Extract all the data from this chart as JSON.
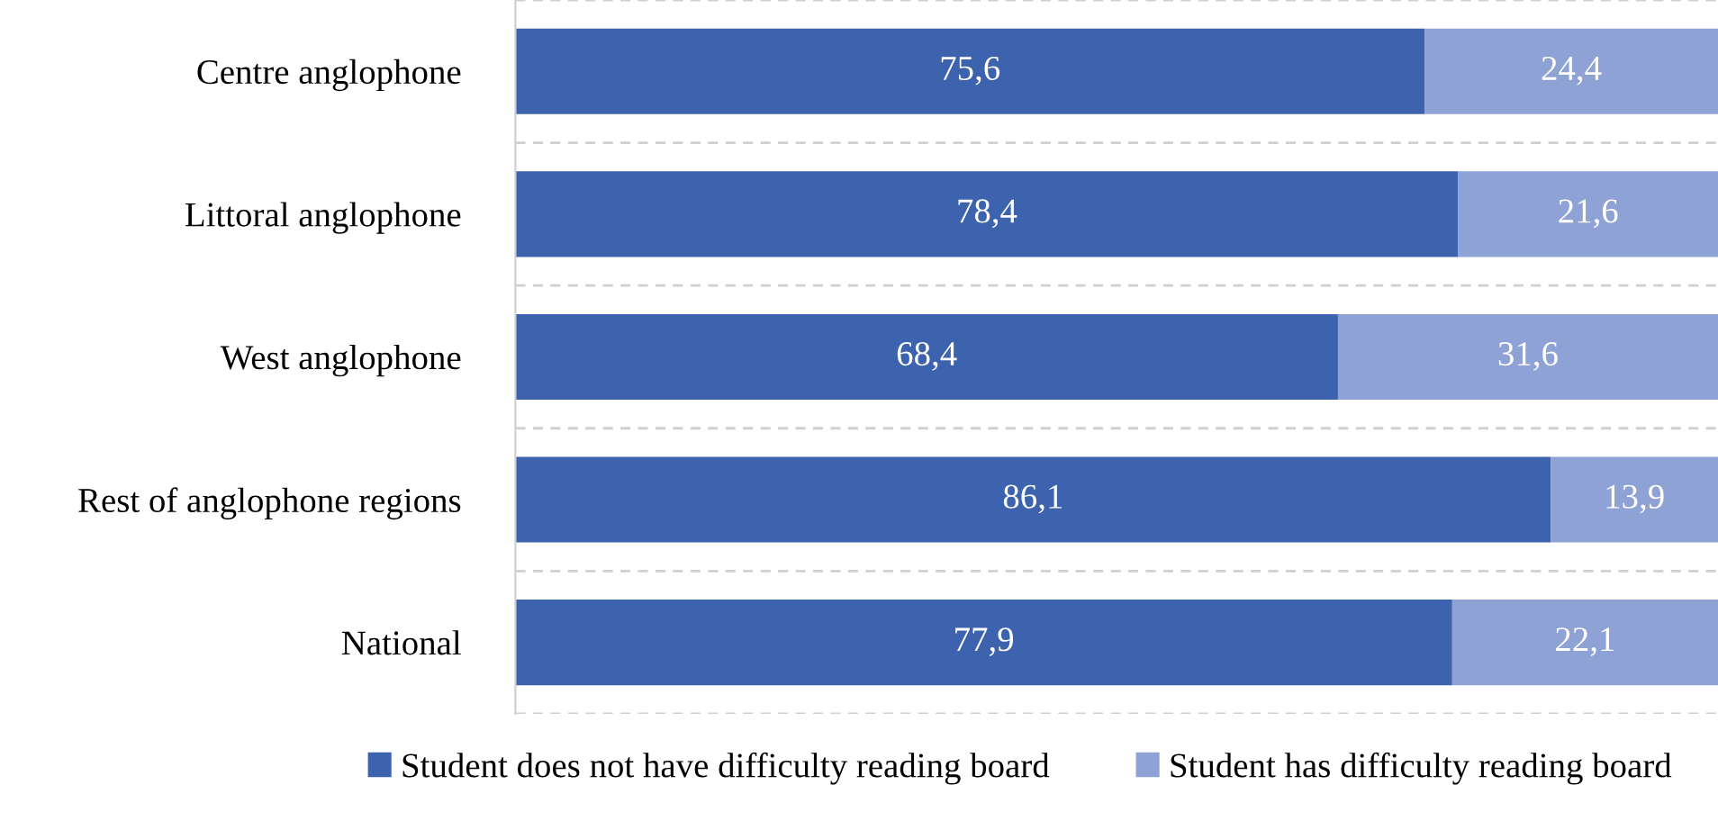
{
  "chart_data": {
    "type": "bar",
    "orientation": "horizontal",
    "stacked": true,
    "categories": [
      "Centre anglophone",
      "Littoral anglophone",
      "West anglophone",
      "Rest of anglophone regions",
      "National"
    ],
    "series": [
      {
        "name": "Student does not have difficulty reading board",
        "color": "#3d63ae",
        "values": [
          75.6,
          78.4,
          68.4,
          86.1,
          77.9
        ],
        "value_labels": [
          "75,6",
          "78,4",
          "68,4",
          "86,1",
          "77,9"
        ]
      },
      {
        "name": "Student has difficulty reading board",
        "color": "#8ea2d6",
        "values": [
          24.4,
          21.6,
          31.6,
          13.9,
          22.1
        ],
        "value_labels": [
          "24,4",
          "21,6",
          "31,6",
          "13,9",
          "22,1"
        ]
      }
    ],
    "grid": "y",
    "legend": "bottom",
    "tick_labels": "y"
  }
}
